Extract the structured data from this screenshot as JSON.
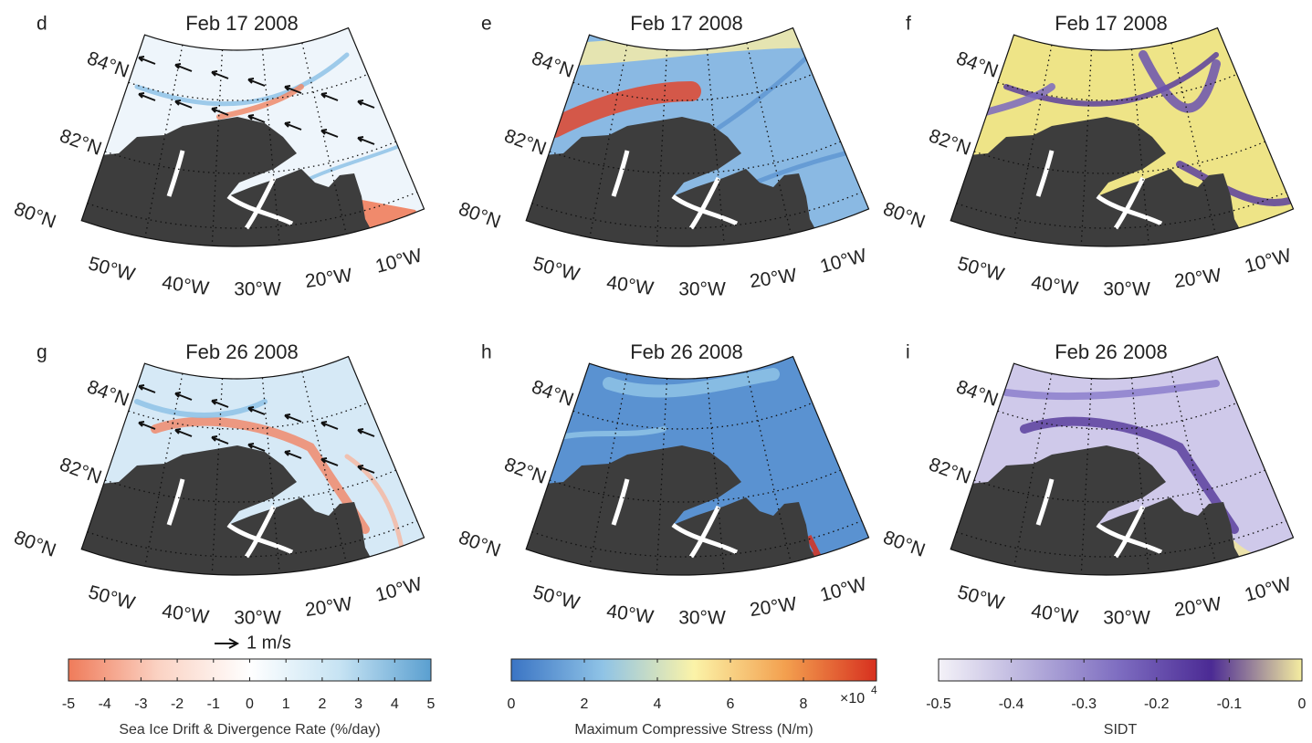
{
  "panels": [
    {
      "letter": "d",
      "title": "Feb 17 2008"
    },
    {
      "letter": "e",
      "title": "Feb 17 2008"
    },
    {
      "letter": "f",
      "title": "Feb 17 2008"
    },
    {
      "letter": "g",
      "title": "Feb 26 2008"
    },
    {
      "letter": "h",
      "title": "Feb 26 2008"
    },
    {
      "letter": "i",
      "title": "Feb 26 2008"
    }
  ],
  "graticule": {
    "lat_labels": [
      "84°N",
      "82°N",
      "80°N"
    ],
    "lon_labels": [
      "50°W",
      "40°W",
      "30°W",
      "20°W",
      "10°W"
    ]
  },
  "reference_arrow": {
    "label": "1 m/s"
  },
  "colorbars": [
    {
      "label": "Sea Ice Drift & Divergence Rate (%/day)",
      "lim": [
        -5,
        5
      ],
      "ticks": [
        -5,
        -4,
        -3,
        -2,
        -1,
        0,
        1,
        2,
        3,
        4,
        5
      ],
      "colors": [
        "#ef7b5a",
        "#fbd3c4",
        "#ffffff",
        "#c6e3f3",
        "#5a9fd0"
      ]
    },
    {
      "label": "Maximum Compressive Stress (N/m)",
      "lim": [
        0,
        10
      ],
      "ticks": [
        0,
        2,
        4,
        6,
        8
      ],
      "multiplier": {
        "base": "×10",
        "exponent": "4"
      },
      "colors": [
        "#3a74c4",
        "#8fc3e6",
        "#fbf3a8",
        "#f3a04f",
        "#d7301f"
      ]
    },
    {
      "label": "SIDT",
      "lim": [
        -0.5,
        0
      ],
      "ticks": [
        -0.5,
        -0.4,
        -0.3,
        -0.2,
        -0.1,
        0
      ],
      "colors": [
        "#f4f2f8",
        "#b7b0dc",
        "#7d6cc0",
        "#4b2a94",
        "#f5eda0"
      ]
    }
  ]
}
